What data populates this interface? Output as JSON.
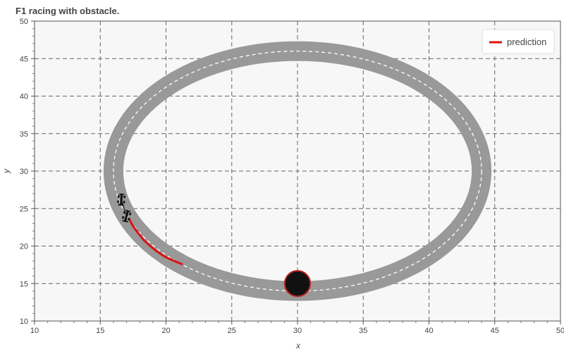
{
  "chart_data": {
    "type": "line",
    "title": "F1 racing with obstacle.",
    "xlabel": "x",
    "ylabel": "y",
    "xlim": [
      10,
      50
    ],
    "ylim": [
      10,
      50
    ],
    "xticks": [
      10,
      15,
      20,
      25,
      30,
      35,
      40,
      45,
      50
    ],
    "yticks": [
      10,
      15,
      20,
      25,
      30,
      35,
      40,
      45,
      50
    ],
    "grid": true,
    "legend_position": "top-right",
    "track": {
      "center": [
        30,
        30
      ],
      "radius_x": 14,
      "radius_y": 16,
      "width": 1.5,
      "color": "#999999"
    },
    "obstacle": {
      "x": 30,
      "y": 15,
      "radius": 1,
      "fill": "#111111",
      "edge": "#b82020"
    },
    "series": [
      {
        "name": "prediction",
        "color": "#dd1111",
        "x": [
          17.2,
          17.5,
          17.9,
          18.3,
          18.8,
          19.3,
          19.9,
          20.5,
          21.2
        ],
        "y": [
          23.6,
          22.6,
          21.7,
          20.8,
          20.0,
          19.3,
          18.6,
          18.1,
          17.6
        ]
      }
    ],
    "vehicles": [
      {
        "x": 16.6,
        "y": 26.2,
        "angle": -86
      },
      {
        "x": 17.0,
        "y": 24.0,
        "angle": -75
      }
    ]
  }
}
